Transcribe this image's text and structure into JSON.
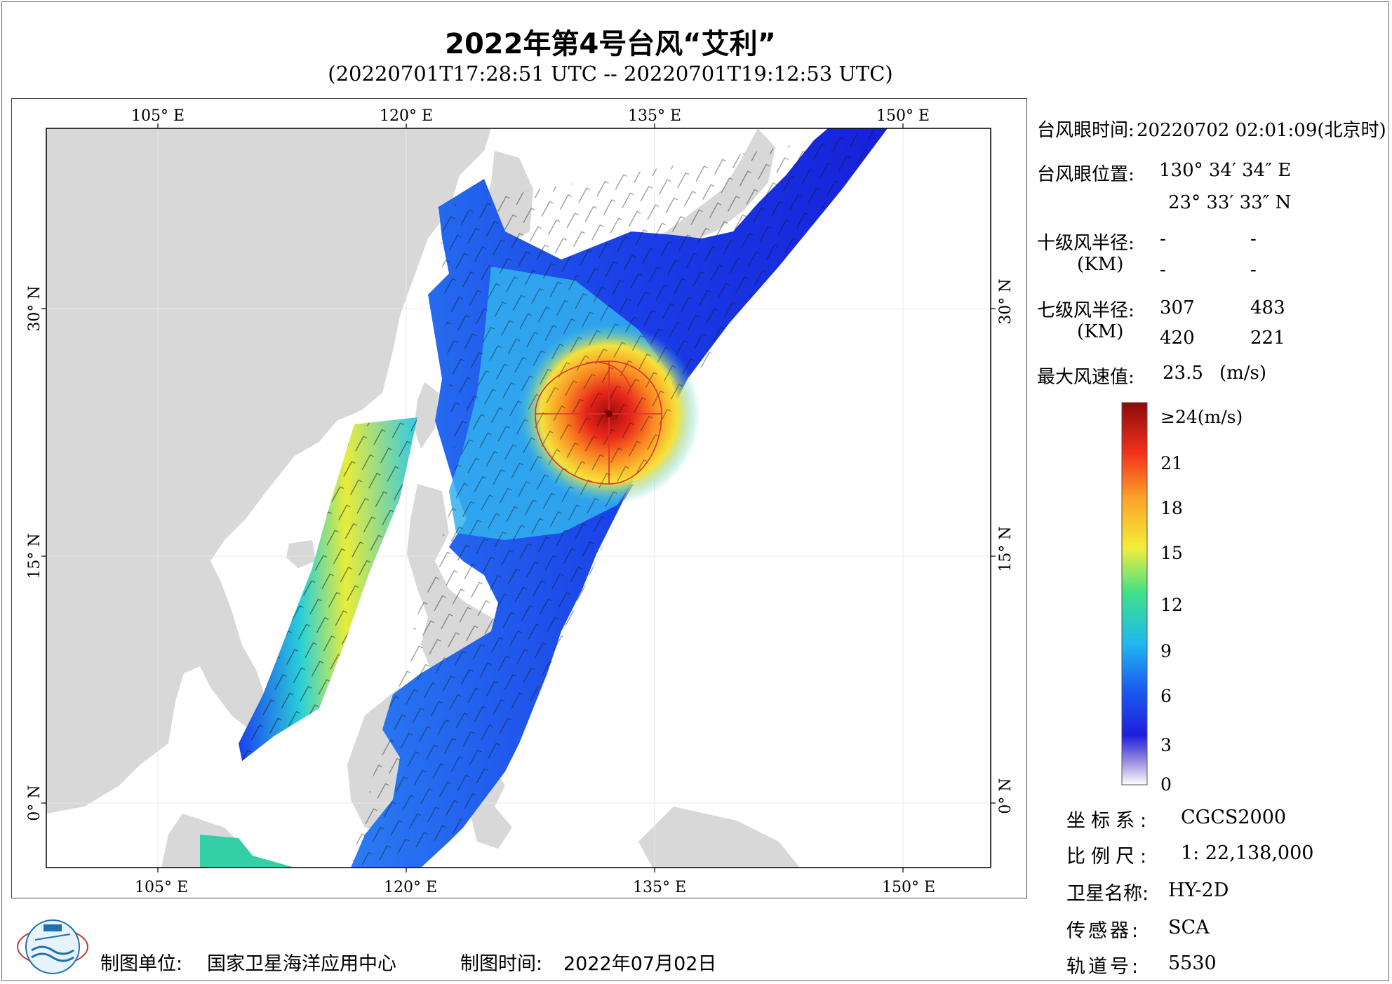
{
  "header": {
    "title": "2022年第4号台风“艾利”",
    "subtitle": "(20220701T17:28:51 UTC -- 20220701T19:12:53 UTC)"
  },
  "map": {
    "lon_ticks_top": [
      "105° E",
      "120° E",
      "135° E",
      "150° E"
    ],
    "lon_ticks_bottom": [
      "105° E",
      "120° E",
      "135° E",
      "150° E"
    ],
    "lat_ticks_left": [
      "30° N",
      "15° N",
      "0° N"
    ],
    "lat_ticks_right": [
      "30° N",
      "15° N",
      "0° N"
    ],
    "lon_range": [
      98,
      155
    ],
    "lat_range": [
      -4,
      41
    ],
    "land_color": "#d8d8d8",
    "sea_color": "#ffffff",
    "typhoon_center": {
      "lon": 130.58,
      "lat": 23.56
    },
    "gale_radius_color": "#e03030"
  },
  "info_panel": {
    "eye_time_label": "台风眼时间:",
    "eye_time_value": "20220702 02:01:09(北京时)",
    "eye_pos_label": "台风眼位置:",
    "eye_lon": "130° 34′ 34″ E",
    "eye_lat": "23° 33′ 33″ N",
    "r10_label": "十级风半径:",
    "r10_unit": "(KM)",
    "r10_values": [
      "-",
      "-",
      "-",
      "-"
    ],
    "r7_label": "七级风半径:",
    "r7_unit": "(KM)",
    "r7_values": [
      "307",
      "483",
      "420",
      "221"
    ],
    "max_wind_label": "最大风速值:",
    "max_wind_value": "23.5",
    "max_wind_unit": "(m/s)"
  },
  "colorbar": {
    "labels": [
      "≥24(m/s)",
      "21",
      "18",
      "15",
      "12",
      "9",
      "6",
      "3",
      "0"
    ],
    "min": 0,
    "max": 24
  },
  "meta": {
    "crs_label": "坐标系:",
    "crs_value": "CGCS2000",
    "scale_label": "比例尺:",
    "scale_value": "1: 22,138,000",
    "sat_label": "卫星名称:",
    "sat_value": "HY-2D",
    "sensor_label": "传感器:",
    "sensor_value": "SCA",
    "orbit_label": "轨道号:",
    "orbit_value": "5530"
  },
  "footer": {
    "org_label": "制图单位:",
    "org_value": "国家卫星海洋应用中心",
    "date_label": "制图时间:",
    "date_value": "2022年07月02日"
  }
}
